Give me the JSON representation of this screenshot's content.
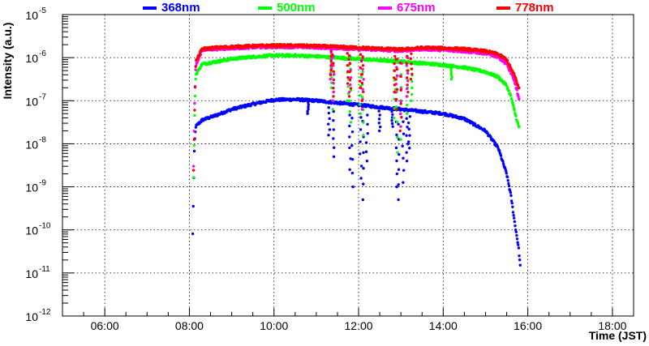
{
  "chart_data": {
    "type": "scatter",
    "title": "",
    "xlabel": "Time (JST)",
    "ylabel": "Intensity (a.u.)",
    "xlim": [
      5.0,
      18.5
    ],
    "ylim_log10": [
      -12,
      -5
    ],
    "y_scale": "log",
    "grid": true,
    "legend_position": "top",
    "x_ticks": [
      {
        "value": 6,
        "label": "06:00"
      },
      {
        "value": 8,
        "label": "08:00"
      },
      {
        "value": 10,
        "label": "10:00"
      },
      {
        "value": 12,
        "label": "12:00"
      },
      {
        "value": 14,
        "label": "14:00"
      },
      {
        "value": 16,
        "label": "16:00"
      },
      {
        "value": 18,
        "label": "18:00"
      }
    ],
    "y_ticks": [
      {
        "exp": -5,
        "base": "10",
        "sup": "-5"
      },
      {
        "exp": -6,
        "base": "10",
        "sup": "-6"
      },
      {
        "exp": -7,
        "base": "10",
        "sup": "-7"
      },
      {
        "exp": -8,
        "base": "10",
        "sup": "-8"
      },
      {
        "exp": -9,
        "base": "10",
        "sup": "-9"
      },
      {
        "exp": -10,
        "base": "10",
        "sup": "-10"
      },
      {
        "exp": -11,
        "base": "10",
        "sup": "-11"
      },
      {
        "exp": -12,
        "base": "10",
        "sup": "-12"
      }
    ],
    "series": [
      {
        "name": "368nm",
        "color": "#0000ff",
        "points": [
          [
            8.08,
            -10.1
          ],
          [
            8.1,
            -9.0
          ],
          [
            8.12,
            -8.0
          ],
          [
            8.15,
            -7.6
          ],
          [
            8.3,
            -7.45
          ],
          [
            8.6,
            -7.35
          ],
          [
            9.0,
            -7.2
          ],
          [
            9.5,
            -7.08
          ],
          [
            10.0,
            -6.98
          ],
          [
            10.5,
            -6.97
          ],
          [
            11.0,
            -7.0
          ],
          [
            11.5,
            -7.05
          ],
          [
            12.0,
            -7.1
          ],
          [
            12.5,
            -7.15
          ],
          [
            13.0,
            -7.2
          ],
          [
            13.5,
            -7.25
          ],
          [
            14.0,
            -7.3
          ],
          [
            14.5,
            -7.42
          ],
          [
            15.0,
            -7.7
          ],
          [
            15.3,
            -8.1
          ],
          [
            15.5,
            -8.7
          ],
          [
            15.6,
            -9.2
          ],
          [
            15.7,
            -9.9
          ],
          [
            15.78,
            -10.4
          ],
          [
            15.83,
            -10.95
          ]
        ],
        "dips": [
          [
            10.8,
            -7.3
          ],
          [
            11.3,
            -7.8
          ],
          [
            11.4,
            -8.3
          ],
          [
            11.8,
            -8.6
          ],
          [
            11.85,
            -9.0
          ],
          [
            12.05,
            -8.8
          ],
          [
            12.1,
            -9.3
          ],
          [
            12.2,
            -8.4
          ],
          [
            12.5,
            -7.7
          ],
          [
            12.8,
            -7.6
          ],
          [
            12.9,
            -9.0
          ],
          [
            12.95,
            -9.3
          ],
          [
            13.05,
            -8.9
          ],
          [
            13.15,
            -8.4
          ],
          [
            13.2,
            -8.1
          ]
        ]
      },
      {
        "name": "500nm",
        "color": "#00ff00",
        "points": [
          [
            8.1,
            -8.8
          ],
          [
            8.12,
            -7.5
          ],
          [
            8.15,
            -6.4
          ],
          [
            8.3,
            -6.15
          ],
          [
            8.6,
            -6.1
          ],
          [
            9.0,
            -6.03
          ],
          [
            9.5,
            -5.98
          ],
          [
            10.0,
            -5.95
          ],
          [
            10.5,
            -5.95
          ],
          [
            11.0,
            -5.97
          ],
          [
            11.5,
            -6.0
          ],
          [
            12.0,
            -6.03
          ],
          [
            12.5,
            -6.06
          ],
          [
            13.0,
            -6.09
          ],
          [
            13.5,
            -6.13
          ],
          [
            14.0,
            -6.17
          ],
          [
            14.5,
            -6.23
          ],
          [
            15.0,
            -6.33
          ],
          [
            15.3,
            -6.45
          ],
          [
            15.5,
            -6.65
          ],
          [
            15.6,
            -6.9
          ],
          [
            15.7,
            -7.3
          ],
          [
            15.8,
            -7.65
          ]
        ],
        "dips": [
          [
            11.35,
            -6.7
          ],
          [
            11.4,
            -7.2
          ],
          [
            11.75,
            -7.0
          ],
          [
            11.8,
            -7.5
          ],
          [
            12.05,
            -7.3
          ],
          [
            12.1,
            -7.8
          ],
          [
            12.85,
            -7.4
          ],
          [
            12.9,
            -8.2
          ],
          [
            13.0,
            -7.9
          ],
          [
            13.15,
            -7.3
          ],
          [
            13.25,
            -7.0
          ],
          [
            14.2,
            -6.5
          ]
        ]
      },
      {
        "name": "675nm",
        "color": "#ff00ff",
        "points": [
          [
            8.1,
            -8.5
          ],
          [
            8.12,
            -7.2
          ],
          [
            8.15,
            -6.2
          ],
          [
            8.3,
            -5.82
          ],
          [
            8.6,
            -5.8
          ],
          [
            9.0,
            -5.78
          ],
          [
            9.5,
            -5.76
          ],
          [
            10.0,
            -5.75
          ],
          [
            10.5,
            -5.75
          ],
          [
            11.0,
            -5.76
          ],
          [
            11.5,
            -5.78
          ],
          [
            12.0,
            -5.8
          ],
          [
            12.5,
            -5.82
          ],
          [
            13.0,
            -5.84
          ],
          [
            13.5,
            -5.8
          ],
          [
            14.0,
            -5.82
          ],
          [
            14.5,
            -5.85
          ],
          [
            15.0,
            -5.9
          ],
          [
            15.3,
            -5.98
          ],
          [
            15.5,
            -6.15
          ],
          [
            15.6,
            -6.35
          ],
          [
            15.7,
            -6.6
          ],
          [
            15.8,
            -7.0
          ]
        ],
        "dips": [
          [
            11.35,
            -6.5
          ],
          [
            11.4,
            -7.0
          ],
          [
            11.8,
            -6.8
          ],
          [
            12.1,
            -7.2
          ],
          [
            12.9,
            -7.0
          ],
          [
            13.0,
            -7.6
          ],
          [
            13.15,
            -6.9
          ]
        ]
      },
      {
        "name": "778nm",
        "color": "#ff0000",
        "points": [
          [
            8.1,
            -8.6
          ],
          [
            8.12,
            -7.4
          ],
          [
            8.15,
            -6.1
          ],
          [
            8.3,
            -5.8
          ],
          [
            8.6,
            -5.77
          ],
          [
            9.0,
            -5.75
          ],
          [
            9.5,
            -5.73
          ],
          [
            10.0,
            -5.72
          ],
          [
            10.5,
            -5.72
          ],
          [
            11.0,
            -5.73
          ],
          [
            11.5,
            -5.75
          ],
          [
            12.0,
            -5.77
          ],
          [
            12.5,
            -5.79
          ],
          [
            13.0,
            -5.81
          ],
          [
            13.5,
            -5.77
          ],
          [
            14.0,
            -5.78
          ],
          [
            14.5,
            -5.8
          ],
          [
            15.0,
            -5.85
          ],
          [
            15.3,
            -5.92
          ],
          [
            15.5,
            -6.05
          ],
          [
            15.6,
            -6.25
          ],
          [
            15.7,
            -6.45
          ],
          [
            15.8,
            -6.75
          ]
        ],
        "dips": [
          [
            11.35,
            -6.4
          ],
          [
            11.4,
            -6.9
          ],
          [
            11.75,
            -6.6
          ],
          [
            11.8,
            -6.9
          ],
          [
            12.05,
            -6.7
          ],
          [
            12.1,
            -7.0
          ],
          [
            12.85,
            -6.8
          ],
          [
            12.9,
            -7.2
          ],
          [
            13.0,
            -7.7
          ],
          [
            13.15,
            -6.8
          ],
          [
            13.25,
            -6.5
          ]
        ]
      }
    ]
  }
}
